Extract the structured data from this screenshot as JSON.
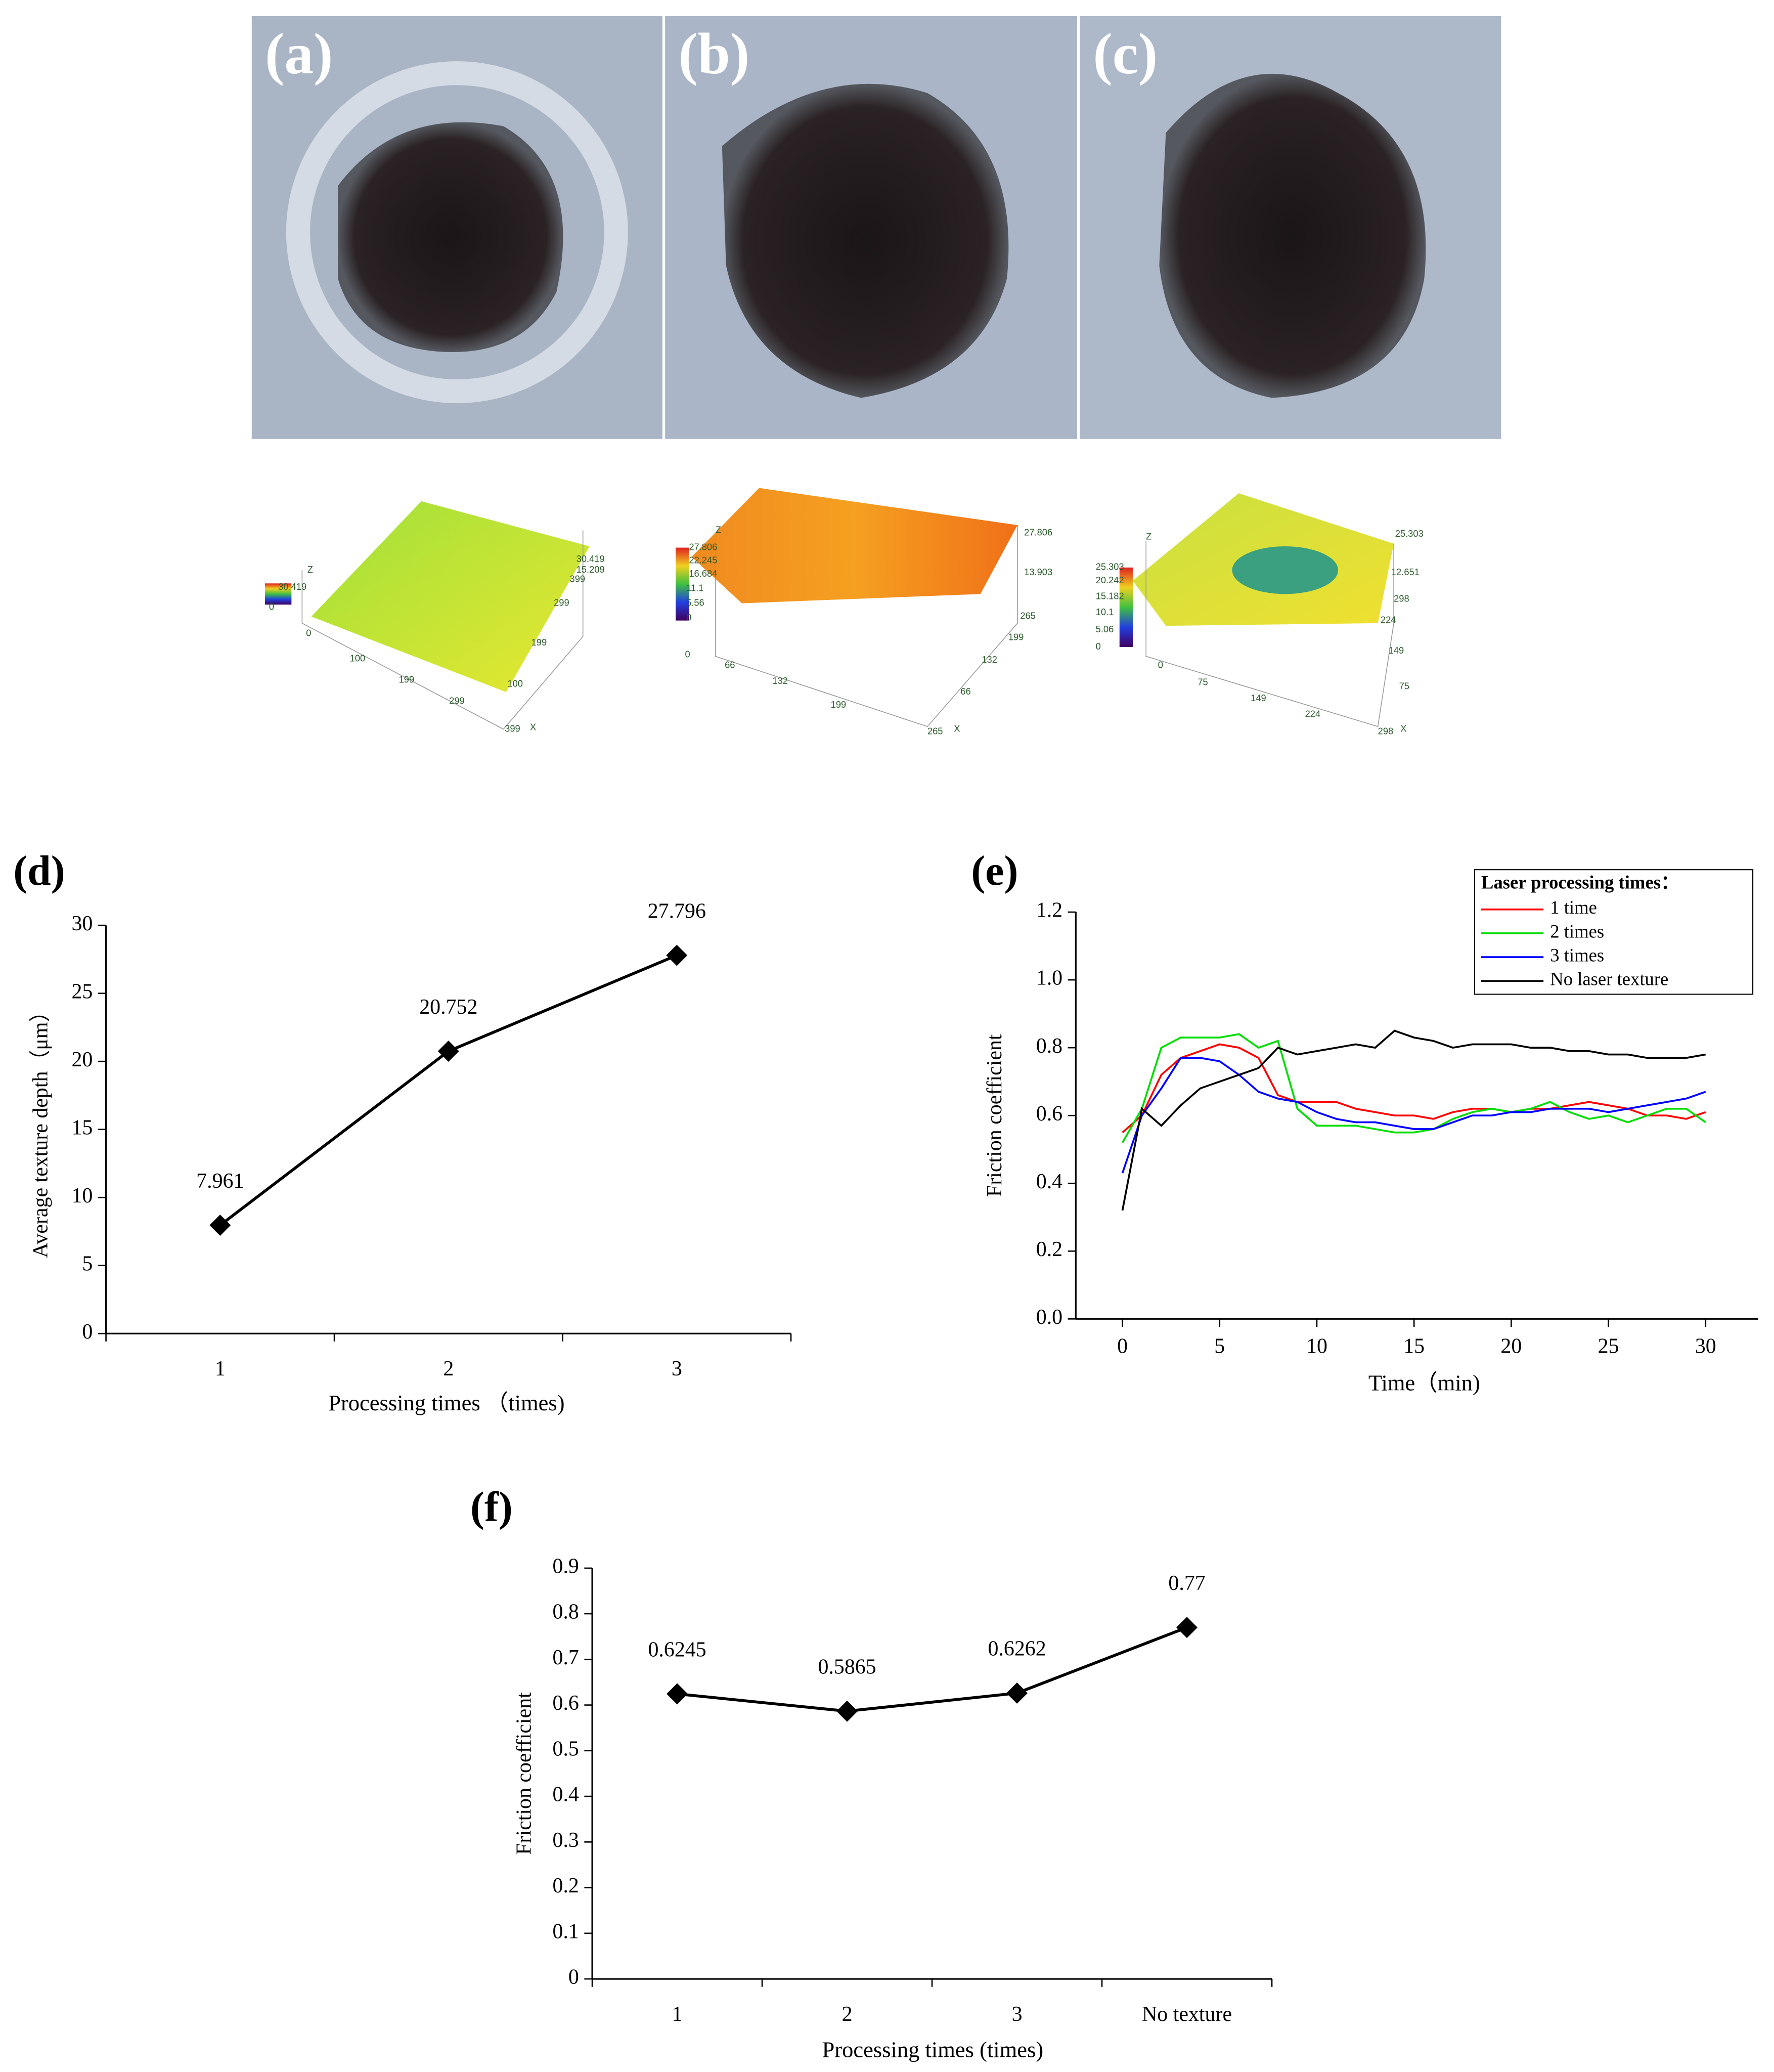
{
  "photos": [
    {
      "label": "(a)"
    },
    {
      "label": "(b)"
    },
    {
      "label": "(c)"
    }
  ],
  "surface_plots": [
    {
      "labels": [
        "30.419",
        "0",
        "Z",
        "0",
        "100",
        "199",
        "299",
        "399",
        "X",
        "100",
        "199",
        "299",
        "30.419",
        "15.209",
        "399"
      ]
    },
    {
      "labels": [
        "27.806",
        "22.245",
        "16.684",
        "11.1",
        "5.56",
        "0",
        "Z",
        "0",
        "66",
        "132",
        "199",
        "265",
        "X",
        "66",
        "132",
        "199",
        "265",
        "13.903",
        "27.806"
      ]
    },
    {
      "labels": [
        "25.303",
        "20.242",
        "15.182",
        "10.1",
        "5.06",
        "0",
        "Z",
        "0",
        "75",
        "149",
        "224",
        "298",
        "X",
        "75",
        "149",
        "224",
        "298",
        "12.651",
        "25.303"
      ]
    }
  ],
  "chart_data": [
    {
      "type": "line",
      "title": "(d)",
      "y_label": "Average texture depth（μm）",
      "x_label": "Processing times （times)",
      "categories": [
        "1",
        "2",
        "3"
      ],
      "values": [
        7.961,
        20.752,
        27.796
      ],
      "color": "#000000",
      "marker": "diamond",
      "ylim": [
        0,
        30
      ],
      "yticks": [
        0,
        5,
        10,
        15,
        20,
        25,
        30
      ]
    },
    {
      "type": "line",
      "title": "(e)",
      "y_label": "Friction coefficient",
      "x_label": "Time（min)",
      "legend_title": "Laser processing times：",
      "legend": "upper right",
      "x": [
        0,
        1,
        2,
        3,
        4,
        5,
        6,
        7,
        8,
        9,
        10,
        11,
        12,
        13,
        14,
        15,
        16,
        17,
        18,
        19,
        20,
        21,
        22,
        23,
        24,
        25,
        26,
        27,
        28,
        29,
        30
      ],
      "series": [
        {
          "name": "1 time",
          "color": "#ff0000",
          "values": [
            0.55,
            0.6,
            0.72,
            0.77,
            0.79,
            0.81,
            0.8,
            0.77,
            0.66,
            0.64,
            0.64,
            0.64,
            0.62,
            0.61,
            0.6,
            0.6,
            0.59,
            0.61,
            0.62,
            0.62,
            0.61,
            0.62,
            0.62,
            0.63,
            0.64,
            0.63,
            0.62,
            0.6,
            0.6,
            0.59,
            0.61
          ]
        },
        {
          "name": "2 times",
          "color": "#00dd00",
          "values": [
            0.52,
            0.62,
            0.8,
            0.83,
            0.83,
            0.83,
            0.84,
            0.8,
            0.82,
            0.62,
            0.57,
            0.57,
            0.57,
            0.56,
            0.55,
            0.55,
            0.56,
            0.59,
            0.61,
            0.62,
            0.61,
            0.62,
            0.64,
            0.61,
            0.59,
            0.6,
            0.58,
            0.6,
            0.62,
            0.62,
            0.58
          ]
        },
        {
          "name": "3 times",
          "color": "#0000ff",
          "values": [
            0.43,
            0.6,
            0.68,
            0.77,
            0.77,
            0.76,
            0.72,
            0.67,
            0.65,
            0.64,
            0.61,
            0.59,
            0.58,
            0.58,
            0.57,
            0.56,
            0.56,
            0.58,
            0.6,
            0.6,
            0.61,
            0.61,
            0.62,
            0.62,
            0.62,
            0.61,
            0.62,
            0.63,
            0.64,
            0.65,
            0.67
          ]
        },
        {
          "name": "No laser texture",
          "color": "#000000",
          "values": [
            0.32,
            0.62,
            0.57,
            0.63,
            0.68,
            0.7,
            0.72,
            0.74,
            0.8,
            0.78,
            0.79,
            0.8,
            0.81,
            0.8,
            0.85,
            0.83,
            0.82,
            0.8,
            0.81,
            0.81,
            0.81,
            0.8,
            0.8,
            0.79,
            0.79,
            0.78,
            0.78,
            0.77,
            0.77,
            0.77,
            0.78
          ]
        }
      ],
      "xlim": [
        -2.4,
        32.7
      ],
      "xticks": [
        0,
        5,
        10,
        15,
        20,
        25,
        30
      ],
      "ylim": [
        0,
        1.2
      ],
      "yticks": [
        {
          "value": 0,
          "label": "0.0"
        },
        0.2,
        0.4,
        0.6,
        0.8,
        {
          "value": 1,
          "label": "1.0"
        },
        1.2
      ]
    },
    {
      "type": "line",
      "title": "(f)",
      "y_label": "Friction coefficient",
      "x_label": "Processing times (times)",
      "categories": [
        "1",
        "2",
        "3",
        "No texture"
      ],
      "values": [
        0.6245,
        0.5865,
        0.6262,
        0.77
      ],
      "color": "#000000",
      "marker": "diamond",
      "ylim": [
        0,
        0.9
      ],
      "yticks": [
        0,
        0.1,
        0.2,
        0.3,
        0.4,
        0.5,
        0.6,
        0.7,
        0.8,
        0.9
      ]
    }
  ]
}
